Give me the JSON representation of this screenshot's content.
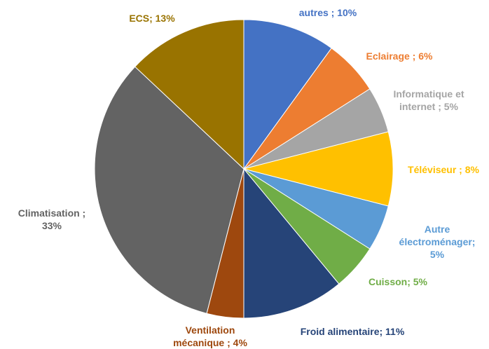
{
  "chart_data": {
    "type": "pie",
    "values": [
      10,
      6,
      5,
      8,
      5,
      5,
      11,
      4,
      33,
      13
    ],
    "value_labels": [
      "autres ; 10%",
      "Eclairage ; 6%",
      "Informatique et internet ; 5%",
      "Téléviseur ; 8%",
      "Autre électroménager; 5%",
      "Cuisson; 5%",
      "Froid alimentaire; 11%",
      "Ventilation mécanique ; 4%",
      "Climatisation ; 33%",
      "ECS; 13%"
    ],
    "colors": [
      "#4472c4",
      "#ed7d31",
      "#a5a5a5",
      "#ffc000",
      "#5b9bd5",
      "#70ad47",
      "#264478",
      "#9e480e",
      "#636363",
      "#997300"
    ]
  }
}
